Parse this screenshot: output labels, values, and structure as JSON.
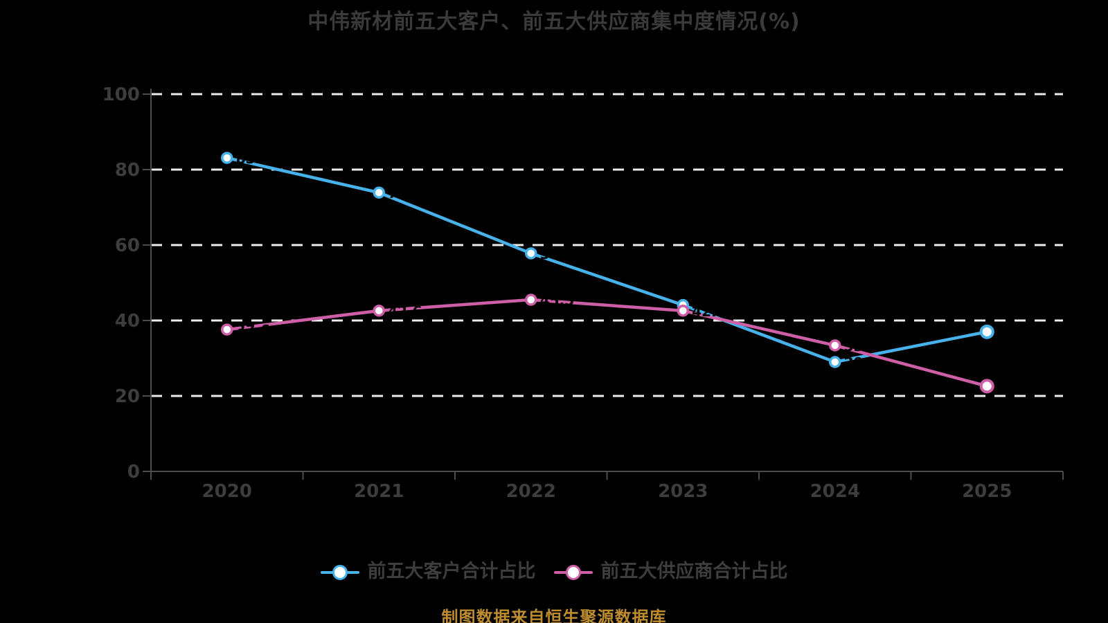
{
  "page": {
    "background": "#000000"
  },
  "header": {
    "title": "中伟新材前五大客户、前五大供应商集中度情况(%)",
    "title_color": "#3a3a3a"
  },
  "chart_data": {
    "type": "line",
    "title": "中伟新材前五大客户、前五大供应商集中度情况(%)",
    "categories": [
      "2020",
      "2021",
      "2022",
      "2023",
      "2024",
      "2025"
    ],
    "series": [
      {
        "name": "前五大客户合计占比",
        "color": "#47b1e9",
        "values": [
          83.1,
          73.9,
          57.8,
          44.1,
          29.0,
          37.0
        ]
      },
      {
        "name": "前五大供应商合计占比",
        "color": "#ce5fa7",
        "values": [
          37.6,
          42.6,
          45.5,
          42.6,
          33.4,
          22.6
        ]
      }
    ],
    "ylim": [
      0,
      100
    ],
    "yticks": [
      0,
      20,
      40,
      60,
      80,
      100
    ],
    "grid": "horizontal-dashed-white",
    "legend_position": "bottom",
    "marker": "circle-white-fill",
    "data_labels": {
      "color": "#000000",
      "note": "values drawn in black, nearly invisible on black background"
    }
  },
  "legend": {
    "items": [
      {
        "label": "前五大客户合计占比",
        "color": "#47b1e9"
      },
      {
        "label": "前五大供应商合计占比",
        "color": "#ce5fa7"
      }
    ],
    "text_color": "#3d3d3d"
  },
  "footer": {
    "source_note": "制图数据来自恒生聚源数据库",
    "color": "#bd8c2e"
  },
  "colors": {
    "background": "#000000",
    "grid": "#ededed",
    "axis": "#4d4d4d",
    "tick_label": "#3d3d3d",
    "data_label": "#000000"
  }
}
